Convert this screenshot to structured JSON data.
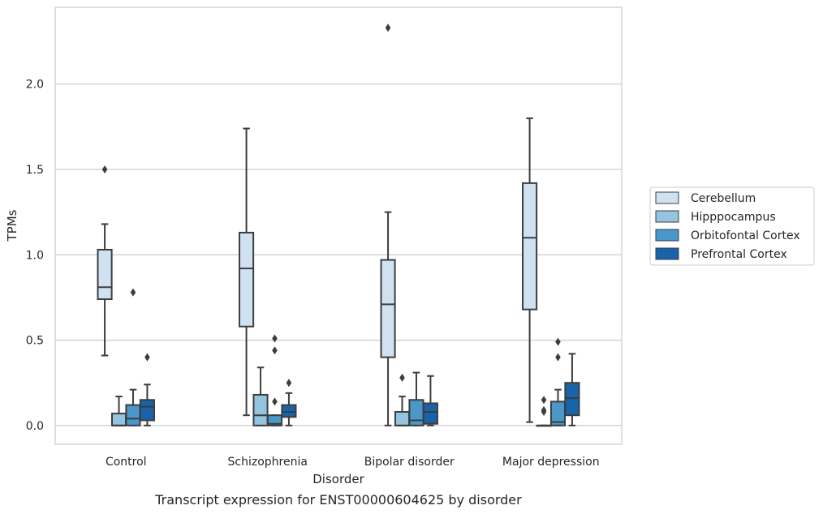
{
  "chart_data": {
    "type": "box",
    "title": "",
    "caption": "Transcript expression for ENST00000604625 by disorder",
    "xlabel": "Disorder",
    "ylabel": "TPMs",
    "ylim": [
      -0.11,
      2.45
    ],
    "yticks": [
      0.0,
      0.5,
      1.0,
      1.5,
      2.0
    ],
    "ytick_labels": [
      "0.0",
      "0.5",
      "1.0",
      "1.5",
      "2.0"
    ],
    "grid": "horizontal",
    "legend_position": "right",
    "categories": [
      "Control",
      "Schizophrenia",
      "Bipolar disorder",
      "Major depression"
    ],
    "series": [
      {
        "name": "Cerebellum",
        "color": "#d0e1f2",
        "boxes": [
          {
            "whislo": 0.41,
            "q1": 0.74,
            "med": 0.81,
            "q3": 1.03,
            "whishi": 1.18,
            "fliers": [
              1.5
            ]
          },
          {
            "whislo": 0.06,
            "q1": 0.58,
            "med": 0.92,
            "q3": 1.13,
            "whishi": 1.74,
            "fliers": []
          },
          {
            "whislo": 0.0,
            "q1": 0.4,
            "med": 0.71,
            "q3": 0.97,
            "whishi": 1.25,
            "fliers": [
              2.33
            ]
          },
          {
            "whislo": 0.02,
            "q1": 0.68,
            "med": 1.1,
            "q3": 1.42,
            "whishi": 1.8,
            "fliers": []
          }
        ]
      },
      {
        "name": "Hipppocampus",
        "color": "#94c4df",
        "boxes": [
          {
            "whislo": 0.0,
            "q1": 0.0,
            "med": 0.0,
            "q3": 0.07,
            "whishi": 0.17,
            "fliers": []
          },
          {
            "whislo": 0.0,
            "q1": 0.0,
            "med": 0.06,
            "q3": 0.18,
            "whishi": 0.34,
            "fliers": []
          },
          {
            "whislo": 0.0,
            "q1": 0.0,
            "med": 0.0,
            "q3": 0.08,
            "whishi": 0.17,
            "fliers": [
              0.28
            ]
          },
          {
            "whislo": 0.0,
            "q1": 0.0,
            "med": 0.0,
            "q3": 0.0,
            "whishi": 0.0,
            "fliers": [
              0.15,
              0.09,
              0.08
            ]
          }
        ]
      },
      {
        "name": "Orbitofontal Cortex",
        "color": "#4a98c9",
        "boxes": [
          {
            "whislo": 0.0,
            "q1": 0.0,
            "med": 0.04,
            "q3": 0.12,
            "whishi": 0.21,
            "fliers": [
              0.78
            ]
          },
          {
            "whislo": 0.0,
            "q1": 0.0,
            "med": 0.01,
            "q3": 0.06,
            "whishi": 0.06,
            "fliers": [
              0.51,
              0.44,
              0.14
            ]
          },
          {
            "whislo": 0.0,
            "q1": 0.0,
            "med": 0.03,
            "q3": 0.15,
            "whishi": 0.31,
            "fliers": []
          },
          {
            "whislo": 0.0,
            "q1": 0.0,
            "med": 0.02,
            "q3": 0.14,
            "whishi": 0.21,
            "fliers": [
              0.49,
              0.4
            ]
          }
        ]
      },
      {
        "name": "Prefrontal Cortex",
        "color": "#1764ab",
        "boxes": [
          {
            "whislo": 0.0,
            "q1": 0.03,
            "med": 0.11,
            "q3": 0.15,
            "whishi": 0.24,
            "fliers": [
              0.4
            ]
          },
          {
            "whislo": 0.0,
            "q1": 0.05,
            "med": 0.08,
            "q3": 0.12,
            "whishi": 0.19,
            "fliers": [
              0.25
            ]
          },
          {
            "whislo": 0.0,
            "q1": 0.01,
            "med": 0.08,
            "q3": 0.13,
            "whishi": 0.29,
            "fliers": []
          },
          {
            "whislo": 0.0,
            "q1": 0.06,
            "med": 0.16,
            "q3": 0.25,
            "whishi": 0.42,
            "fliers": []
          }
        ]
      }
    ]
  }
}
